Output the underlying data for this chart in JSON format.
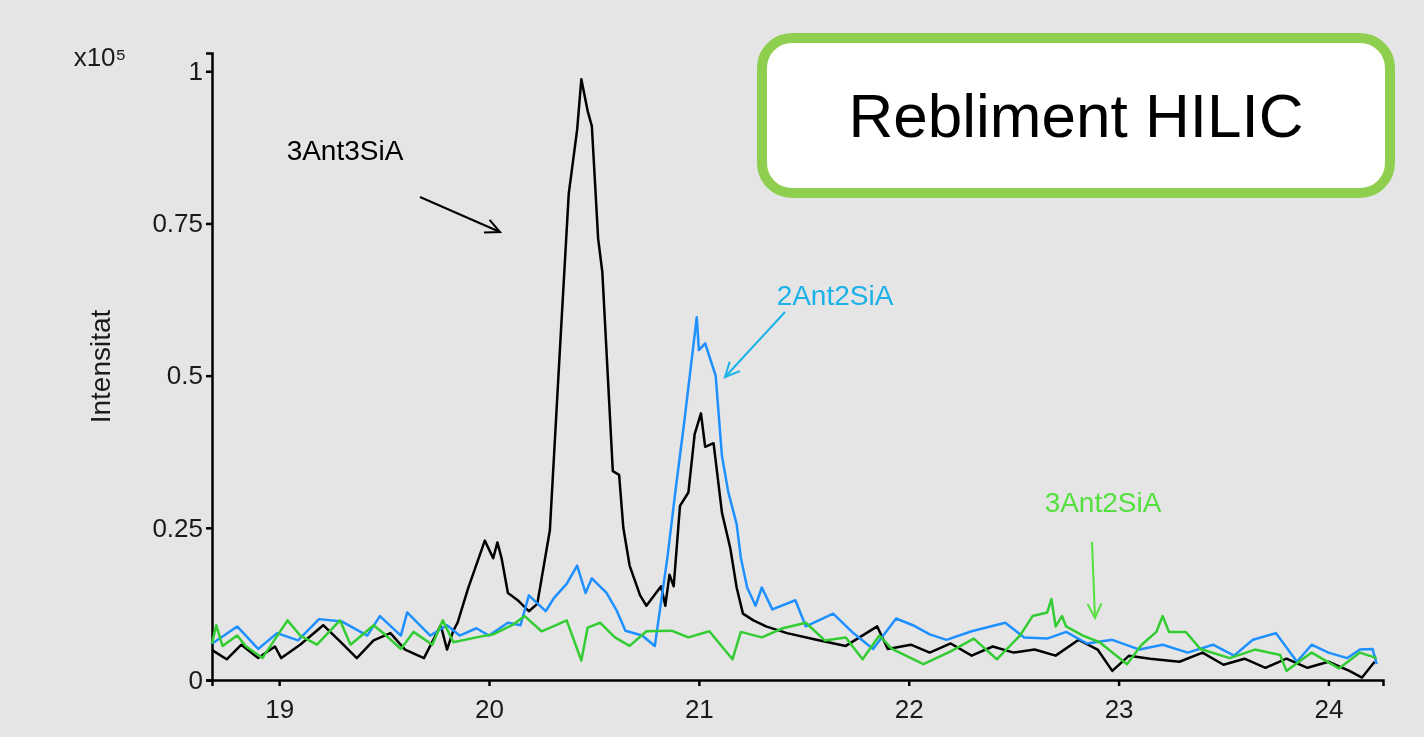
{
  "chart_data": {
    "type": "line",
    "title": "Rebliment HILIC",
    "ylabel": "Intensitat",
    "xlim": [
      18.68,
      24.26
    ],
    "xticks": [
      19,
      20,
      21,
      22,
      23,
      24
    ],
    "ylim": [
      0,
      1.03
    ],
    "yticks": [
      0,
      0.25,
      0.5,
      0.75,
      1
    ],
    "grid": false,
    "marker": "none",
    "line_style": "solid",
    "annotations": [
      "x10⁵",
      "3Ant3SiA",
      "2Ant2SiA",
      "3Ant2SiA"
    ],
    "series": [
      {
        "color": "#000000",
        "x": [
          18.68,
          18.69,
          18.75,
          18.82,
          18.9,
          18.98,
          19.01,
          19.1,
          19.21,
          19.3,
          19.37,
          19.45,
          19.53,
          19.6,
          19.69,
          19.77,
          19.8,
          19.83,
          19.85,
          19.9,
          19.98,
          20.02,
          20.04,
          20.06,
          20.09,
          20.14,
          20.19,
          20.23,
          20.29,
          20.34,
          20.38,
          20.42,
          20.44,
          20.47,
          20.49,
          20.52,
          20.54,
          20.59,
          20.62,
          20.64,
          20.67,
          20.72,
          20.75,
          20.82,
          20.84,
          20.86,
          20.88,
          20.91,
          20.95,
          20.98,
          21.01,
          21.03,
          21.07,
          21.11,
          21.15,
          21.18,
          21.21,
          21.26,
          21.32,
          21.42,
          21.56,
          21.7,
          21.85,
          21.9,
          22.01,
          22.1,
          22.2,
          22.3,
          22.4,
          22.5,
          22.6,
          22.7,
          22.81,
          22.9,
          22.97,
          23.05,
          23.15,
          23.29,
          23.4,
          23.5,
          23.6,
          23.7,
          23.8,
          23.9,
          24.0,
          24.1,
          24.16,
          24.22
        ],
        "values": [
          0.05,
          0.047,
          0.034,
          0.058,
          0.036,
          0.055,
          0.036,
          0.058,
          0.09,
          0.06,
          0.036,
          0.065,
          0.077,
          0.05,
          0.036,
          0.09,
          0.05,
          0.081,
          0.094,
          0.15,
          0.229,
          0.2,
          0.226,
          0.2,
          0.143,
          0.13,
          0.113,
          0.125,
          0.246,
          0.556,
          0.799,
          0.904,
          0.987,
          0.935,
          0.91,
          0.725,
          0.67,
          0.343,
          0.337,
          0.25,
          0.188,
          0.139,
          0.122,
          0.154,
          0.122,
          0.173,
          0.154,
          0.286,
          0.308,
          0.404,
          0.438,
          0.383,
          0.389,
          0.275,
          0.216,
          0.152,
          0.109,
          0.098,
          0.088,
          0.077,
          0.066,
          0.056,
          0.088,
          0.051,
          0.058,
          0.045,
          0.06,
          0.04,
          0.055,
          0.045,
          0.05,
          0.04,
          0.066,
          0.05,
          0.015,
          0.04,
          0.035,
          0.03,
          0.045,
          0.025,
          0.035,
          0.02,
          0.035,
          0.02,
          0.03,
          0.015,
          0.004,
          0.03
        ]
      },
      {
        "color": "#1e90ff",
        "x": [
          18.68,
          18.69,
          18.8,
          18.9,
          18.99,
          19.09,
          19.19,
          19.3,
          19.42,
          19.48,
          19.58,
          19.61,
          19.72,
          19.8,
          19.86,
          19.94,
          20.0,
          20.09,
          20.15,
          20.19,
          20.27,
          20.31,
          20.37,
          20.42,
          20.46,
          20.49,
          20.56,
          20.61,
          20.65,
          20.73,
          20.79,
          20.85,
          20.89,
          20.93,
          20.99,
          21.0,
          21.03,
          21.08,
          21.11,
          21.14,
          21.18,
          21.2,
          21.23,
          21.27,
          21.3,
          21.35,
          21.46,
          21.51,
          21.64,
          21.73,
          21.83,
          21.94,
          22.02,
          22.1,
          22.18,
          22.3,
          22.46,
          22.55,
          22.66,
          22.75,
          22.85,
          22.97,
          23.1,
          23.21,
          23.33,
          23.45,
          23.55,
          23.64,
          23.75,
          23.85,
          23.92,
          24.0,
          24.09,
          24.15,
          24.21,
          24.23
        ],
        "values": [
          0.06,
          0.062,
          0.088,
          0.051,
          0.077,
          0.065,
          0.1,
          0.096,
          0.073,
          0.105,
          0.073,
          0.111,
          0.073,
          0.09,
          0.073,
          0.085,
          0.073,
          0.094,
          0.09,
          0.139,
          0.113,
          0.135,
          0.158,
          0.188,
          0.143,
          0.167,
          0.143,
          0.113,
          0.081,
          0.073,
          0.056,
          0.201,
          0.315,
          0.423,
          0.596,
          0.542,
          0.553,
          0.5,
          0.368,
          0.309,
          0.256,
          0.201,
          0.152,
          0.122,
          0.152,
          0.116,
          0.131,
          0.088,
          0.109,
          0.079,
          0.051,
          0.101,
          0.09,
          0.075,
          0.066,
          0.08,
          0.094,
          0.07,
          0.068,
          0.079,
          0.06,
          0.066,
          0.05,
          0.058,
          0.045,
          0.058,
          0.04,
          0.066,
          0.077,
          0.03,
          0.058,
          0.045,
          0.036,
          0.05,
          0.051,
          0.026
        ]
      },
      {
        "color": "#33cc33",
        "x": [
          18.68,
          18.7,
          18.73,
          18.8,
          18.84,
          18.92,
          19.04,
          19.1,
          19.18,
          19.29,
          19.34,
          19.45,
          19.51,
          19.58,
          19.64,
          19.73,
          19.78,
          19.83,
          19.94,
          20.02,
          20.11,
          20.17,
          20.25,
          20.32,
          20.37,
          20.44,
          20.47,
          20.53,
          20.6,
          20.67,
          20.75,
          20.87,
          20.95,
          21.05,
          21.16,
          21.2,
          21.3,
          21.4,
          21.51,
          21.6,
          21.7,
          21.78,
          21.86,
          21.92,
          22.07,
          22.2,
          22.31,
          22.42,
          22.53,
          22.59,
          22.66,
          22.68,
          22.7,
          22.73,
          22.75,
          22.83,
          22.91,
          23.04,
          23.11,
          23.18,
          23.21,
          23.24,
          23.32,
          23.39,
          23.53,
          23.65,
          23.77,
          23.8,
          23.92,
          24.05,
          24.15,
          24.23
        ],
        "values": [
          0.06,
          0.09,
          0.056,
          0.073,
          0.056,
          0.036,
          0.098,
          0.073,
          0.058,
          0.098,
          0.058,
          0.09,
          0.073,
          0.051,
          0.079,
          0.058,
          0.098,
          0.062,
          0.07,
          0.075,
          0.09,
          0.105,
          0.08,
          0.09,
          0.098,
          0.032,
          0.086,
          0.094,
          0.07,
          0.056,
          0.08,
          0.081,
          0.07,
          0.08,
          0.034,
          0.079,
          0.07,
          0.085,
          0.094,
          0.065,
          0.07,
          0.034,
          0.073,
          0.051,
          0.026,
          0.047,
          0.068,
          0.034,
          0.073,
          0.105,
          0.111,
          0.133,
          0.088,
          0.105,
          0.088,
          0.073,
          0.062,
          0.026,
          0.058,
          0.079,
          0.105,
          0.079,
          0.079,
          0.051,
          0.036,
          0.05,
          0.041,
          0.015,
          0.045,
          0.019,
          0.045,
          0.036
        ]
      }
    ]
  }
}
